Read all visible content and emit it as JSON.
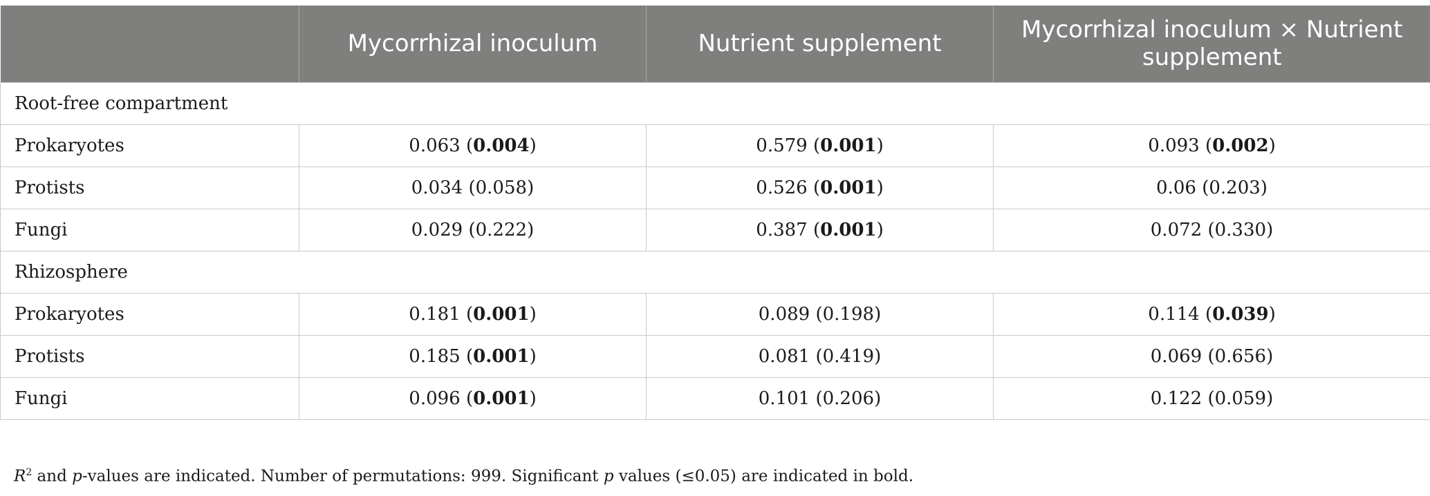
{
  "table": {
    "headers": [
      "",
      "Mycorrhizal inoculum",
      "Nutrient supplement",
      "Mycorrhizal inoculum × Nutrient supplement"
    ],
    "sections": [
      {
        "title": "Root-free compartment",
        "rows": [
          {
            "label": "Prokaryotes",
            "cells": [
              {
                "r2": "0.063",
                "p": "0.004",
                "sig": true
              },
              {
                "r2": "0.579",
                "p": "0.001",
                "sig": true
              },
              {
                "r2": "0.093",
                "p": "0.002",
                "sig": true
              }
            ]
          },
          {
            "label": "Protists",
            "cells": [
              {
                "r2": "0.034",
                "p": "0.058",
                "sig": false
              },
              {
                "r2": "0.526",
                "p": "0.001",
                "sig": true
              },
              {
                "r2": "0.06",
                "p": "0.203",
                "sig": false
              }
            ]
          },
          {
            "label": "Fungi",
            "cells": [
              {
                "r2": "0.029",
                "p": "0.222",
                "sig": false
              },
              {
                "r2": "0.387",
                "p": "0.001",
                "sig": true
              },
              {
                "r2": "0.072",
                "p": "0.330",
                "sig": false
              }
            ]
          }
        ]
      },
      {
        "title": "Rhizosphere",
        "rows": [
          {
            "label": "Prokaryotes",
            "cells": [
              {
                "r2": "0.181",
                "p": "0.001",
                "sig": true
              },
              {
                "r2": "0.089",
                "p": "0.198",
                "sig": false
              },
              {
                "r2": "0.114",
                "p": "0.039",
                "sig": true
              }
            ]
          },
          {
            "label": "Protists",
            "cells": [
              {
                "r2": "0.185",
                "p": "0.001",
                "sig": true
              },
              {
                "r2": "0.081",
                "p": "0.419",
                "sig": false
              },
              {
                "r2": "0.069",
                "p": "0.656",
                "sig": false
              }
            ]
          },
          {
            "label": "Fungi",
            "cells": [
              {
                "r2": "0.096",
                "p": "0.001",
                "sig": true
              },
              {
                "r2": "0.101",
                "p": "0.206",
                "sig": false
              },
              {
                "r2": "0.122",
                "p": "0.059",
                "sig": false
              }
            ]
          }
        ]
      }
    ]
  },
  "footnote": {
    "r": "R",
    "r_sup": "2",
    "part1": " and ",
    "p1": "p",
    "part2": "-values are indicated. Number of permutations: 999. Significant ",
    "p2": "p",
    "part3": " values (≤0.05) are indicated in bold."
  },
  "colors": {
    "header_bg": "#7f807e",
    "header_text": "#ffffff",
    "grid": "#c9c9c9"
  }
}
